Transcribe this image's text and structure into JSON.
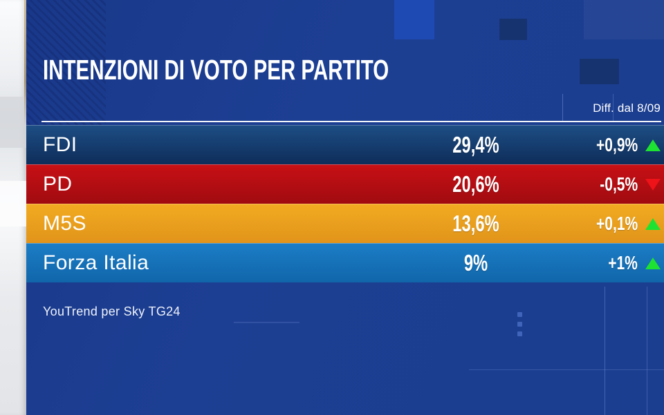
{
  "header": {
    "diff_label": "Diff. dal 8/09"
  },
  "chart_data": {
    "type": "table",
    "title": "INTENZIONI DI VOTO PER PARTITO",
    "diff_column_label": "Diff. dal 8/09",
    "source": "YouTrend per Sky TG24",
    "rows": [
      {
        "party": "FDI",
        "value": "29,4%",
        "value_num": 29.4,
        "diff": "+0,9%",
        "diff_num": 0.9,
        "trend": "up",
        "color_top": "#1d4e85",
        "color_bottom": "#0e2d5a",
        "trend_color": "#1ee231"
      },
      {
        "party": "PD",
        "value": "20,6%",
        "value_num": 20.6,
        "diff": "-0,5%",
        "diff_num": -0.5,
        "trend": "down",
        "color_top": "#c81015",
        "color_bottom": "#a00b10",
        "trend_color": "#ee1219"
      },
      {
        "party": "M5S",
        "value": "13,6%",
        "value_num": 13.6,
        "diff": "+0,1%",
        "diff_num": 0.1,
        "trend": "up",
        "color_top": "#f2ab21",
        "color_bottom": "#e1941a",
        "trend_color": "#1ee231"
      },
      {
        "party": "Forza Italia",
        "value": "9%",
        "value_num": 9.0,
        "diff": "+1%",
        "diff_num": 1.0,
        "trend": "up",
        "color_top": "#1b7dc6",
        "color_bottom": "#1166aa",
        "trend_color": "#1ee231"
      }
    ]
  },
  "footer": {
    "source": "YouTrend per Sky TG24"
  },
  "colors": {
    "panel_background": "#1d3f92",
    "studio_strip": "#eceef1",
    "divider": "#f2f5fa",
    "text": "#ffffff",
    "up_green": "#1ee231",
    "down_red": "#ee1219"
  }
}
